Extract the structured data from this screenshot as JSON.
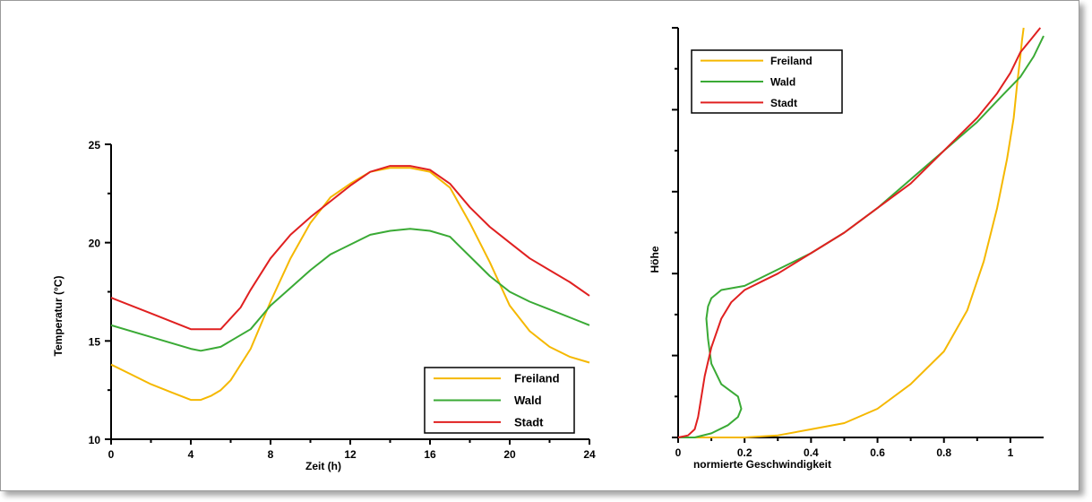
{
  "chart_data": [
    {
      "type": "line",
      "title": "",
      "xlabel": "Zeit (h)",
      "ylabel": "Temperatur (°C)",
      "xlim": [
        0,
        24
      ],
      "ylim": [
        10,
        25
      ],
      "xticks": [
        0,
        4,
        8,
        12,
        16,
        20,
        24
      ],
      "yticks": [
        10,
        15,
        20,
        25
      ],
      "grid": false,
      "legend_position": "bottom-right",
      "series": [
        {
          "name": "Freiland",
          "color": "#f5b800",
          "x": [
            0,
            1,
            2,
            3,
            4,
            4.5,
            5,
            5.5,
            6,
            7,
            8,
            9,
            10,
            11,
            12,
            13,
            14,
            15,
            16,
            17,
            18,
            19,
            20,
            21,
            22,
            23,
            24
          ],
          "y": [
            13.8,
            13.3,
            12.8,
            12.4,
            12.0,
            12.0,
            12.2,
            12.5,
            13.0,
            14.6,
            17.0,
            19.2,
            21.0,
            22.3,
            23.0,
            23.6,
            23.8,
            23.8,
            23.6,
            22.8,
            21.0,
            19.0,
            16.8,
            15.5,
            14.7,
            14.2,
            13.9
          ]
        },
        {
          "name": "Wald",
          "color": "#3aaa35",
          "x": [
            0,
            2,
            4,
            4.5,
            5,
            5.5,
            6,
            7,
            8,
            9,
            10,
            11,
            12,
            13,
            14,
            15,
            16,
            17,
            18,
            19,
            20,
            21,
            22,
            23,
            24
          ],
          "y": [
            15.8,
            15.2,
            14.6,
            14.5,
            14.6,
            14.7,
            15.0,
            15.6,
            16.8,
            17.7,
            18.6,
            19.4,
            19.9,
            20.4,
            20.6,
            20.7,
            20.6,
            20.3,
            19.3,
            18.3,
            17.5,
            17.0,
            16.6,
            16.2,
            15.8
          ]
        },
        {
          "name": "Stadt",
          "color": "#e02020",
          "x": [
            0,
            2,
            4,
            5,
            5.5,
            6.5,
            7,
            8,
            9,
            10,
            11,
            12,
            13,
            14,
            15,
            16,
            17,
            18,
            19,
            20,
            21,
            22,
            23,
            24
          ],
          "y": [
            17.2,
            16.4,
            15.6,
            15.6,
            15.6,
            16.7,
            17.6,
            19.2,
            20.4,
            21.3,
            22.1,
            22.9,
            23.6,
            23.9,
            23.9,
            23.7,
            23.0,
            21.8,
            20.8,
            20.0,
            19.2,
            18.6,
            18.0,
            17.3
          ]
        }
      ]
    },
    {
      "type": "line",
      "title": "",
      "xlabel": "normierte Geschwindigkeit",
      "ylabel": "Höhe",
      "xlim": [
        0,
        1.1
      ],
      "ylim": [
        0,
        1
      ],
      "xticks": [
        0,
        0.2,
        0.4,
        0.6,
        0.8,
        1
      ],
      "xtick_labels": [
        "0",
        "0.2",
        "0.4",
        "0.6",
        "0.8",
        "1"
      ],
      "yticks": [
        0,
        0.2,
        0.4,
        0.6,
        0.8,
        1
      ],
      "ytick_labels": [],
      "grid": false,
      "legend_position": "top-left",
      "series": [
        {
          "name": "Freiland",
          "color": "#f5b800",
          "x": [
            0,
            0.05,
            0.1,
            0.2,
            0.3,
            0.4,
            0.5,
            0.6,
            0.7,
            0.8,
            0.87,
            0.92,
            0.96,
            0.99,
            1.01,
            1.02,
            1.03,
            1.035,
            1.04
          ],
          "y": [
            0,
            0,
            0,
            0,
            0.005,
            0.02,
            0.035,
            0.07,
            0.13,
            0.21,
            0.31,
            0.43,
            0.56,
            0.68,
            0.78,
            0.86,
            0.93,
            0.97,
            1.0
          ]
        },
        {
          "name": "Wald",
          "color": "#3aaa35",
          "x": [
            0,
            0.05,
            0.1,
            0.15,
            0.18,
            0.19,
            0.18,
            0.13,
            0.1,
            0.09,
            0.085,
            0.09,
            0.1,
            0.13,
            0.2,
            0.3,
            0.4,
            0.5,
            0.6,
            0.7,
            0.8,
            0.9,
            0.97,
            1.03,
            1.07,
            1.1
          ],
          "y": [
            0,
            0.0,
            0.01,
            0.03,
            0.05,
            0.07,
            0.1,
            0.13,
            0.18,
            0.24,
            0.29,
            0.32,
            0.34,
            0.36,
            0.37,
            0.41,
            0.45,
            0.5,
            0.56,
            0.63,
            0.7,
            0.77,
            0.83,
            0.88,
            0.93,
            0.98
          ]
        },
        {
          "name": "Stadt",
          "color": "#e02020",
          "x": [
            0,
            0.03,
            0.05,
            0.06,
            0.07,
            0.08,
            0.1,
            0.13,
            0.16,
            0.2,
            0.25,
            0.3,
            0.4,
            0.5,
            0.6,
            0.7,
            0.8,
            0.9,
            0.96,
            1.0,
            1.03,
            1.06,
            1.09
          ],
          "y": [
            0,
            0.005,
            0.02,
            0.05,
            0.1,
            0.15,
            0.22,
            0.29,
            0.33,
            0.36,
            0.38,
            0.4,
            0.45,
            0.5,
            0.56,
            0.62,
            0.7,
            0.78,
            0.84,
            0.89,
            0.94,
            0.97,
            1.0
          ]
        }
      ]
    }
  ]
}
